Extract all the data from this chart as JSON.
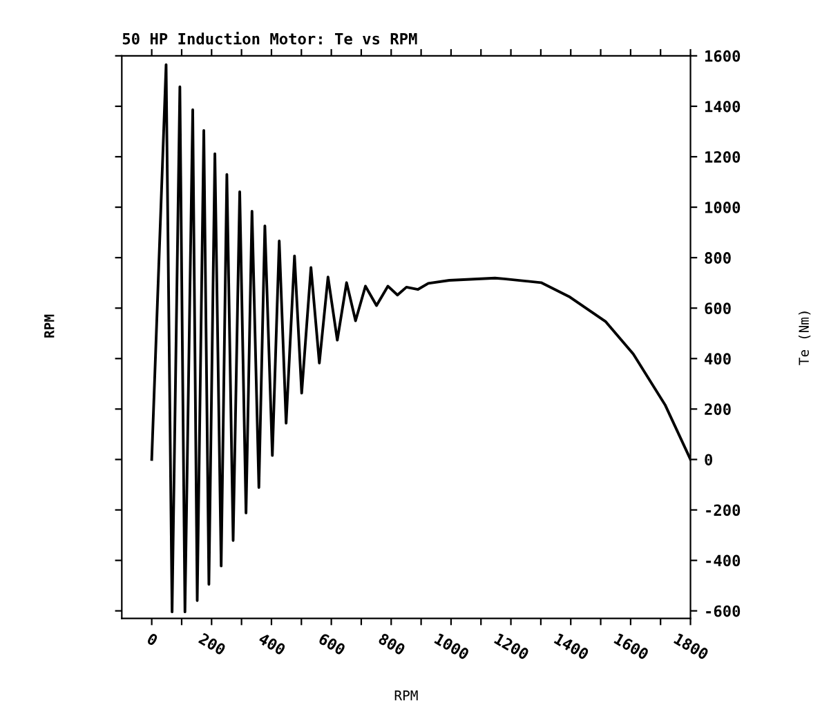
{
  "chart_data": {
    "type": "line",
    "title": "50 HP Induction Motor: Te vs RPM",
    "xlabel": "RPM",
    "ylabel": "Te (Nm)",
    "annotations": [
      "RPM"
    ],
    "series": [
      {
        "color": "#000000",
        "x": [
          0,
          48,
          68,
          94,
          111,
          137,
          152,
          174,
          191,
          211,
          232,
          251,
          272,
          294,
          315,
          335,
          358,
          378,
          403,
          426,
          449,
          477,
          501,
          532,
          560,
          589,
          620,
          651,
          681,
          714,
          751,
          789,
          821,
          851,
          889,
          924,
          994,
          1147,
          1178,
          1301,
          1394,
          1517,
          1609,
          1715,
          1800
        ],
        "values": [
          0,
          1565,
          -604,
          1477,
          -604,
          1386,
          -559,
          1304,
          -495,
          1212,
          -422,
          1130,
          -321,
          1061,
          -212,
          984,
          -111,
          926,
          16,
          866,
          144,
          807,
          263,
          761,
          382,
          723,
          473,
          701,
          550,
          687,
          610,
          687,
          652,
          683,
          674,
          698,
          710,
          719,
          716,
          701,
          646,
          546,
          418,
          217,
          0
        ]
      }
    ],
    "xlim": [
      -100,
      1800
    ],
    "ylim": [
      -630,
      1600
    ],
    "xticks": [
      0,
      {
        "value": 100,
        "label": null
      },
      200,
      {
        "value": 300,
        "label": null
      },
      400,
      {
        "value": 500,
        "label": null
      },
      600,
      {
        "value": 700,
        "label": null
      },
      800,
      {
        "value": 900,
        "label": null
      },
      1000,
      {
        "value": 1100,
        "label": null
      },
      1200,
      {
        "value": 1300,
        "label": null
      },
      1400,
      {
        "value": 1500,
        "label": null
      },
      1600,
      {
        "value": 1700,
        "label": null
      },
      1800
    ],
    "yticks": [
      -600,
      -400,
      -200,
      0,
      200,
      400,
      600,
      800,
      1000,
      1200,
      1400,
      1600
    ],
    "grid": false,
    "legend": false,
    "marker": "none",
    "line_style": "solid"
  }
}
